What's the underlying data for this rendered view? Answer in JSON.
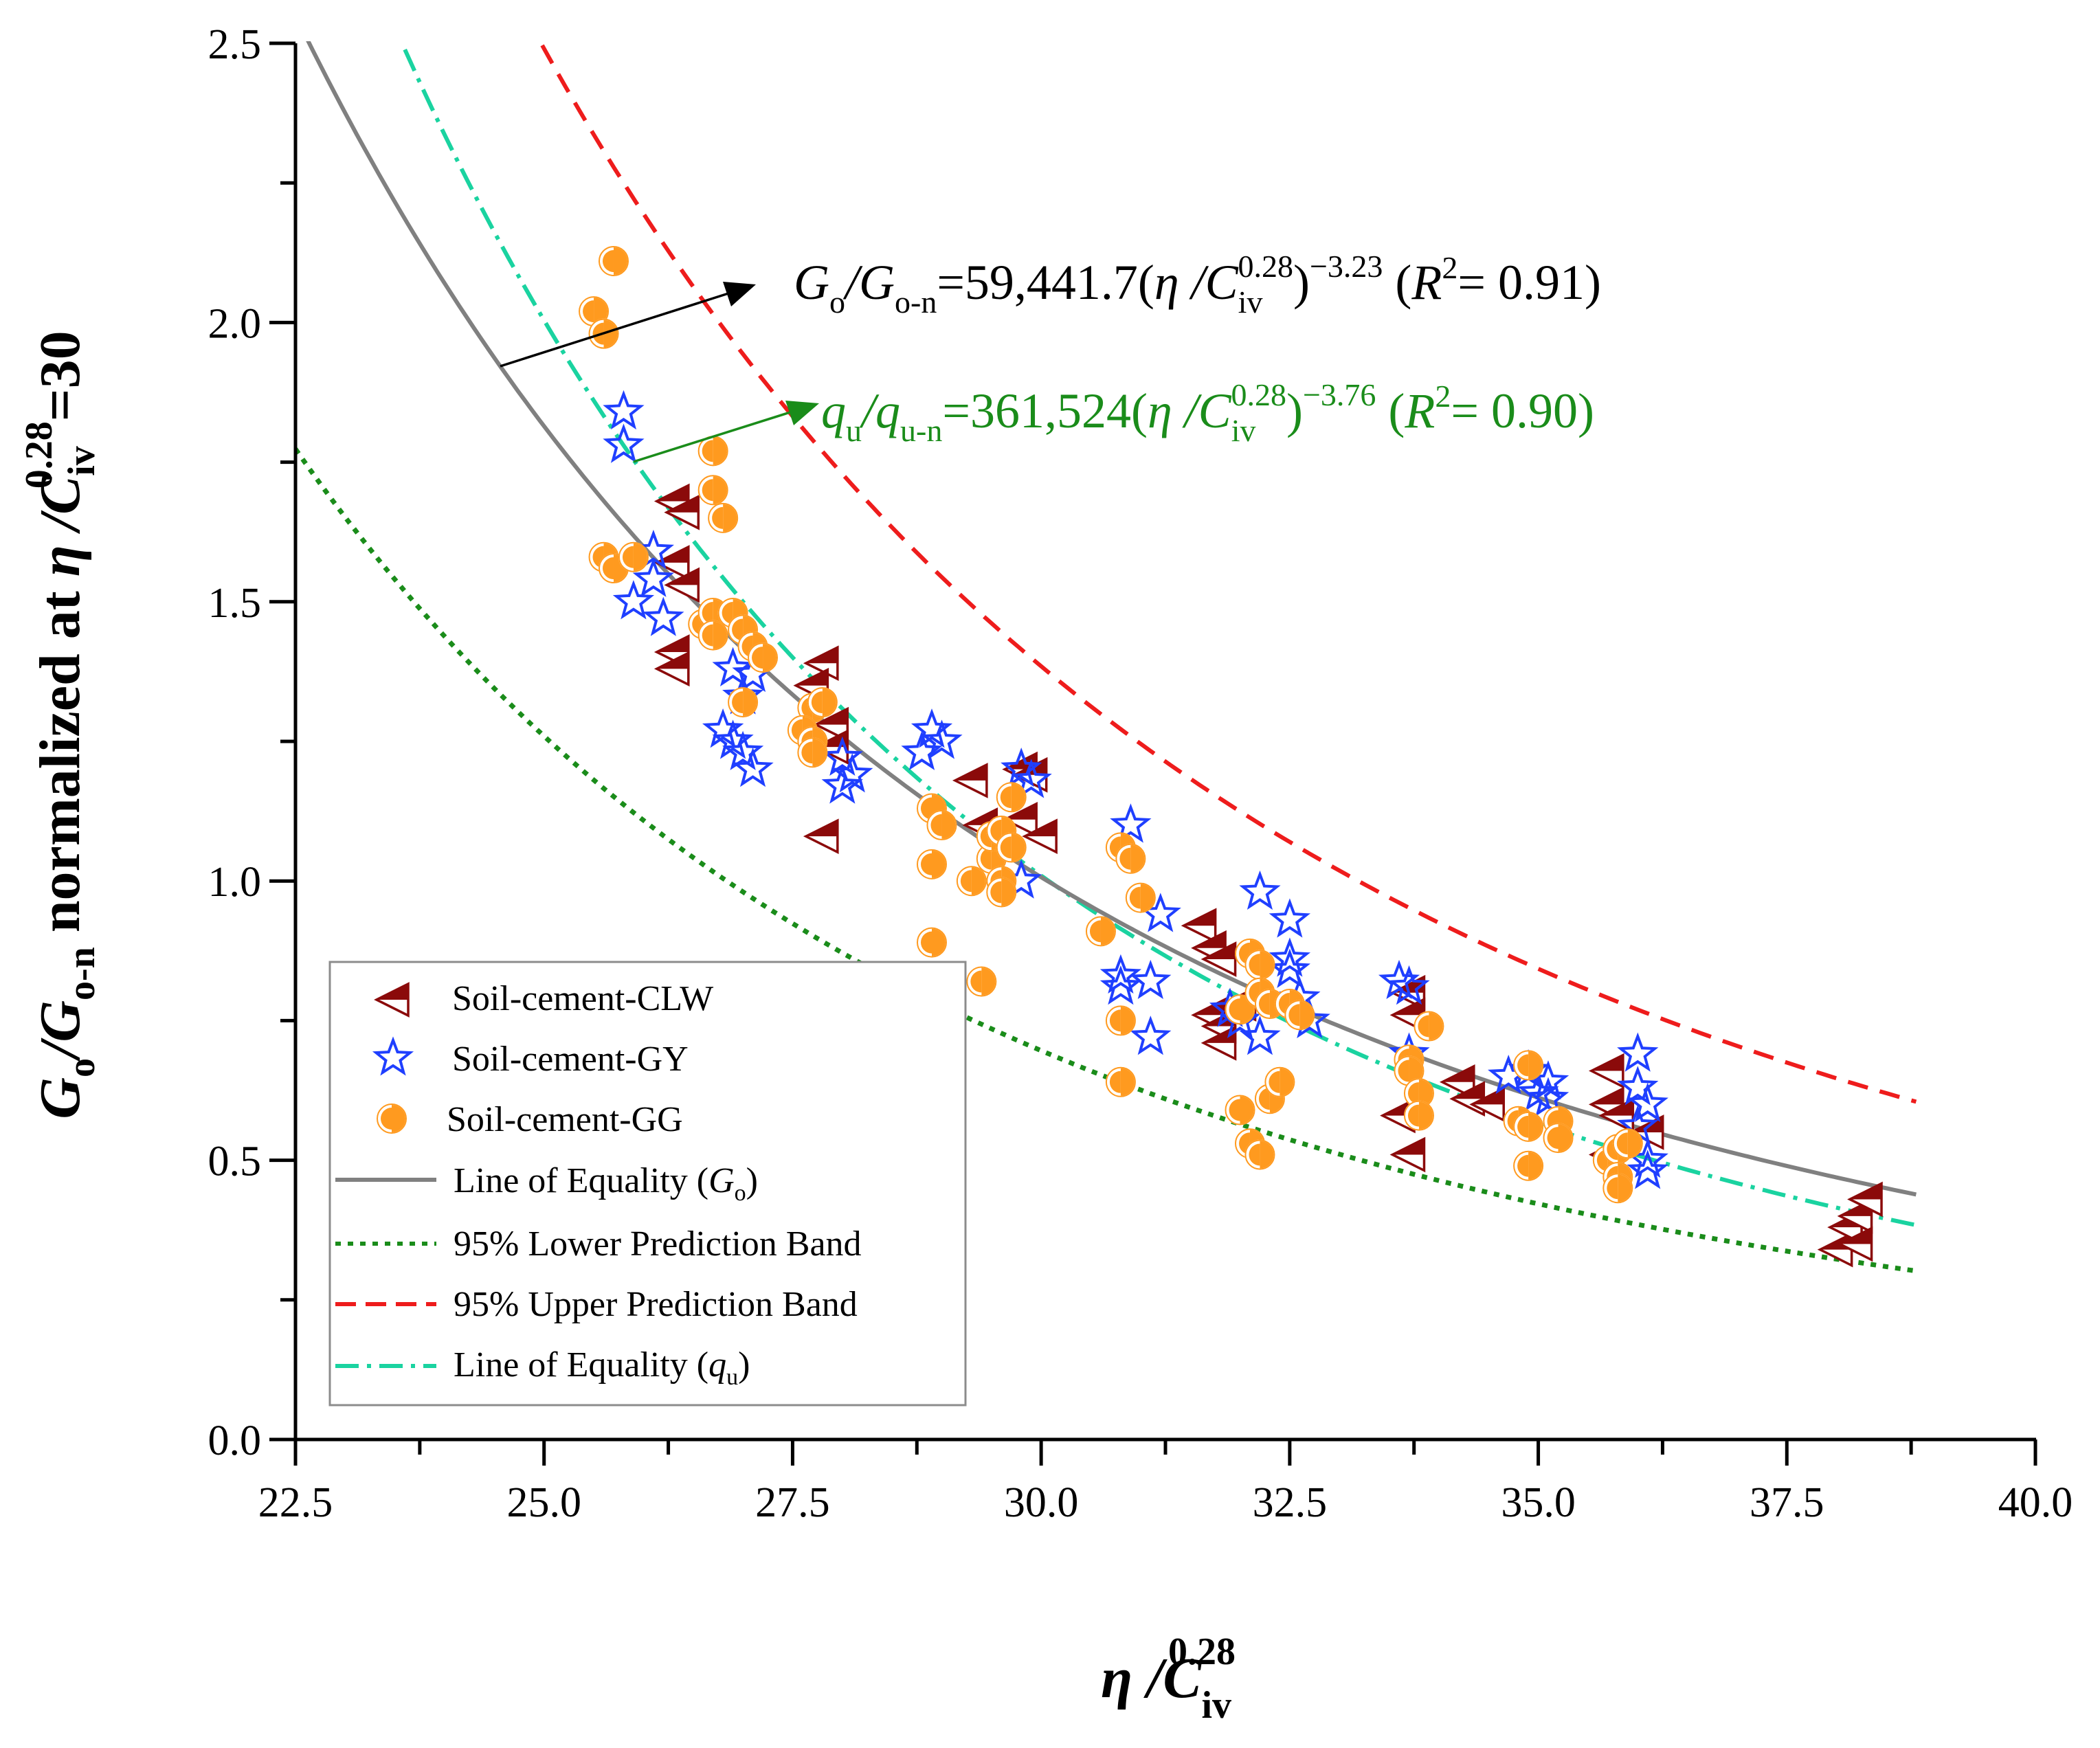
{
  "chart_data": {
    "type": "scatter",
    "xlabel": "η /C_iv^0.28",
    "ylabel": "G_o/G_o-n normalized at η/C_iv^0.28=30",
    "xlim": [
      22.5,
      40.0
    ],
    "ylim": [
      0.0,
      2.5
    ],
    "xticks": [
      "22.5",
      "25.0",
      "27.5",
      "30.0",
      "32.5",
      "35.0",
      "37.5",
      "40.0"
    ],
    "yticks": [
      "0.0",
      "0.5",
      "1.0",
      "1.5",
      "2.0",
      "2.5"
    ],
    "x_label_parts": {
      "eta": "η",
      "slash": " /C",
      "sub": "iv",
      "sup": "0.28"
    },
    "y_label_parts": {
      "G": "G",
      "o": "o",
      "slash": "/G",
      "on": "o-n",
      "mid": " normalized at ",
      "eta": "η",
      "c": " /C",
      "iv": "iv",
      "p": "0.28",
      "end": "=30"
    },
    "annotations": {
      "go": {
        "a": "G",
        "b": "o",
        "c": "/G",
        "d": "o-n",
        "e": "=59,441.7(",
        "f": "η",
        "g": " /C",
        "h": "iv",
        "i": "0.28",
        "j": ")",
        "k": "−3.23",
        "l": " (",
        "m": "R",
        "n": "2",
        "o": "= 0.91)"
      },
      "qu": {
        "a": "q",
        "b": "u",
        "c": "/q",
        "d": "u-n",
        "e": "=361,524(",
        "f": "η",
        "g": " /C",
        "h": "iv",
        "i": "0.28",
        "j": ")",
        "k": "−3.76",
        "l": " (",
        "m": "R",
        "n": "2",
        "o": "= 0.90)"
      }
    },
    "curves": {
      "go_fit": {
        "coef": 59441.7,
        "exp": -3.23,
        "x_range": [
          22.6,
          38.8
        ],
        "color": "#808080"
      },
      "qu_fit": {
        "coef": 361524,
        "exp": -3.76,
        "x_range": [
          23.6,
          38.8
        ],
        "color": "#1ad3a0"
      },
      "upper_band": {
        "coef": 79000,
        "exp": -3.22,
        "x_range": [
          23.4,
          38.8
        ],
        "color": "#ee1c1c"
      },
      "lower_band": {
        "coef": 44000,
        "exp": -3.25,
        "x_range": [
          22.5,
          38.8
        ],
        "color": "#1a8c1a"
      }
    },
    "legend": {
      "position": "bottom-left",
      "entries": [
        {
          "label": "Soil-cement-CLW",
          "marker": "triangle-left-half",
          "color": "#8b0a0a"
        },
        {
          "label": "Soil-cement-GY",
          "marker": "star",
          "color": "#1f3fff"
        },
        {
          "label": "Soil-cement-GG",
          "marker": "circle-half",
          "color": "#ff9a1f"
        },
        {
          "label": "Line of Equality (",
          "italic": "G",
          "sub": "o",
          "close": ")",
          "line": "solid",
          "color": "#808080"
        },
        {
          "label": "95% Lower Prediction Band",
          "line": "dotted",
          "color": "#1a8c1a"
        },
        {
          "label": "95% Upper Prediction Band",
          "line": "dashed",
          "color": "#ee1c1c"
        },
        {
          "label": "Line of Equality (",
          "italic": "q",
          "sub": "u",
          "close": ")",
          "line": "dashdot",
          "color": "#1ad3a0"
        }
      ]
    },
    "series": [
      {
        "name": "Soil-cement-CLW",
        "marker": "triangle-left-half",
        "color": "#8b0a0a",
        "points": [
          [
            26.3,
            1.68
          ],
          [
            26.4,
            1.66
          ],
          [
            26.3,
            1.57
          ],
          [
            26.4,
            1.53
          ],
          [
            26.3,
            1.41
          ],
          [
            26.3,
            1.38
          ],
          [
            27.8,
            1.39
          ],
          [
            27.7,
            1.35
          ],
          [
            27.9,
            1.28
          ],
          [
            27.9,
            1.24
          ],
          [
            27.8,
            1.08
          ],
          [
            29.3,
            1.18
          ],
          [
            29.4,
            1.1
          ],
          [
            29.8,
            1.2
          ],
          [
            29.9,
            1.19
          ],
          [
            29.8,
            1.11
          ],
          [
            30.0,
            1.08
          ],
          [
            31.6,
            0.92
          ],
          [
            31.7,
            0.88
          ],
          [
            31.8,
            0.86
          ],
          [
            31.7,
            0.76
          ],
          [
            31.8,
            0.74
          ],
          [
            31.8,
            0.71
          ],
          [
            32.0,
            0.78
          ],
          [
            33.7,
            0.8
          ],
          [
            33.7,
            0.76
          ],
          [
            33.6,
            0.58
          ],
          [
            33.7,
            0.51
          ],
          [
            34.2,
            0.64
          ],
          [
            34.3,
            0.61
          ],
          [
            34.5,
            0.6
          ],
          [
            35.7,
            0.66
          ],
          [
            35.7,
            0.6
          ],
          [
            35.8,
            0.58
          ],
          [
            35.7,
            0.51
          ],
          [
            36.1,
            0.55
          ],
          [
            38.0,
            0.34
          ],
          [
            38.1,
            0.38
          ],
          [
            38.2,
            0.4
          ],
          [
            38.3,
            0.43
          ],
          [
            38.2,
            0.35
          ]
        ]
      },
      {
        "name": "Soil-cement-GY",
        "marker": "star",
        "color": "#1f3fff",
        "points": [
          [
            25.8,
            1.84
          ],
          [
            25.8,
            1.78
          ],
          [
            26.1,
            1.59
          ],
          [
            25.9,
            1.5
          ],
          [
            26.2,
            1.47
          ],
          [
            26.1,
            1.54
          ],
          [
            26.8,
            1.27
          ],
          [
            26.9,
            1.25
          ],
          [
            27.0,
            1.33
          ],
          [
            27.1,
            1.2
          ],
          [
            27.0,
            1.23
          ],
          [
            26.9,
            1.38
          ],
          [
            27.1,
            1.37
          ],
          [
            28.0,
            1.22
          ],
          [
            28.0,
            1.17
          ],
          [
            28.1,
            1.19
          ],
          [
            28.8,
            1.23
          ],
          [
            28.9,
            1.27
          ],
          [
            29.0,
            1.25
          ],
          [
            29.8,
            1.2
          ],
          [
            29.9,
            1.18
          ],
          [
            29.8,
            1.0
          ],
          [
            30.9,
            1.1
          ],
          [
            30.8,
            0.83
          ],
          [
            30.8,
            0.81
          ],
          [
            31.1,
            0.82
          ],
          [
            31.1,
            0.72
          ],
          [
            31.2,
            0.94
          ],
          [
            31.9,
            0.77
          ],
          [
            32.0,
            0.75
          ],
          [
            32.2,
            0.98
          ],
          [
            32.2,
            0.72
          ],
          [
            32.5,
            0.93
          ],
          [
            32.5,
            0.86
          ],
          [
            32.5,
            0.84
          ],
          [
            32.6,
            0.79
          ],
          [
            32.7,
            0.75
          ],
          [
            33.6,
            0.82
          ],
          [
            33.7,
            0.81
          ],
          [
            33.7,
            0.69
          ],
          [
            34.7,
            0.65
          ],
          [
            34.9,
            0.66
          ],
          [
            35.0,
            0.62
          ],
          [
            35.1,
            0.64
          ],
          [
            35.1,
            0.61
          ],
          [
            36.0,
            0.69
          ],
          [
            36.0,
            0.63
          ],
          [
            36.1,
            0.6
          ],
          [
            36.1,
            0.48
          ],
          [
            36.1,
            0.5
          ],
          [
            36.0,
            0.56
          ]
        ]
      },
      {
        "name": "Soil-cement-GG",
        "marker": "circle-half",
        "color": "#ff9a1f",
        "points": [
          [
            25.7,
            2.11
          ],
          [
            25.5,
            2.02
          ],
          [
            25.6,
            1.98
          ],
          [
            25.6,
            1.58
          ],
          [
            25.7,
            1.56
          ],
          [
            25.9,
            1.58
          ],
          [
            26.7,
            1.77
          ],
          [
            26.7,
            1.7
          ],
          [
            26.8,
            1.65
          ],
          [
            26.6,
            1.46
          ],
          [
            26.7,
            1.48
          ],
          [
            26.7,
            1.44
          ],
          [
            26.9,
            1.48
          ],
          [
            27.0,
            1.45
          ],
          [
            27.1,
            1.42
          ],
          [
            27.2,
            1.4
          ],
          [
            27.0,
            1.32
          ],
          [
            27.7,
            1.31
          ],
          [
            27.6,
            1.27
          ],
          [
            27.7,
            1.25
          ],
          [
            27.7,
            1.23
          ],
          [
            27.8,
            1.32
          ],
          [
            28.9,
            1.13
          ],
          [
            29.0,
            1.1
          ],
          [
            28.9,
            1.03
          ],
          [
            28.9,
            0.89
          ],
          [
            29.3,
            1.0
          ],
          [
            29.4,
            0.82
          ],
          [
            29.5,
            1.04
          ],
          [
            29.5,
            1.08
          ],
          [
            29.6,
            1.09
          ],
          [
            29.6,
            1.0
          ],
          [
            29.7,
            1.15
          ],
          [
            29.7,
            1.06
          ],
          [
            29.6,
            0.98
          ],
          [
            30.6,
            0.91
          ],
          [
            30.8,
            1.06
          ],
          [
            30.9,
            1.04
          ],
          [
            31.0,
            0.97
          ],
          [
            30.8,
            0.75
          ],
          [
            30.8,
            0.64
          ],
          [
            32.0,
            0.77
          ],
          [
            32.1,
            0.87
          ],
          [
            32.2,
            0.85
          ],
          [
            32.2,
            0.8
          ],
          [
            32.3,
            0.78
          ],
          [
            32.5,
            0.78
          ],
          [
            32.6,
            0.76
          ],
          [
            32.0,
            0.59
          ],
          [
            32.1,
            0.53
          ],
          [
            32.2,
            0.51
          ],
          [
            32.3,
            0.61
          ],
          [
            32.4,
            0.64
          ],
          [
            33.7,
            0.68
          ],
          [
            33.7,
            0.66
          ],
          [
            33.8,
            0.62
          ],
          [
            33.8,
            0.58
          ],
          [
            33.9,
            0.74
          ],
          [
            34.8,
            0.57
          ],
          [
            34.9,
            0.56
          ],
          [
            34.9,
            0.67
          ],
          [
            34.9,
            0.49
          ],
          [
            35.2,
            0.57
          ],
          [
            35.2,
            0.54
          ],
          [
            35.7,
            0.5
          ],
          [
            35.8,
            0.52
          ],
          [
            35.9,
            0.53
          ],
          [
            35.8,
            0.47
          ],
          [
            35.8,
            0.45
          ]
        ]
      }
    ]
  }
}
